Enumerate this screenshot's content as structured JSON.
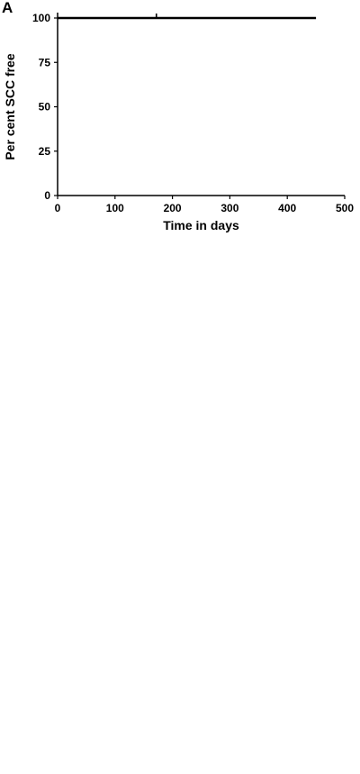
{
  "chart_data": [
    {
      "type": "line",
      "panel_label": "A",
      "xlabel": "Time in days",
      "ylabel": "Per cent SCC free",
      "xlim": [
        0,
        500
      ],
      "ylim": [
        0,
        100
      ],
      "x_ticks": [
        0,
        100,
        200,
        300,
        400,
        500
      ],
      "y_ticks": [
        0,
        25,
        50,
        75,
        100
      ],
      "grid": false,
      "series": [
        {
          "points": [
            [
              0,
              100
            ],
            [
              450,
              100
            ]
          ],
          "censored": [
            [
              172,
              100
            ]
          ]
        }
      ]
    }
  ]
}
